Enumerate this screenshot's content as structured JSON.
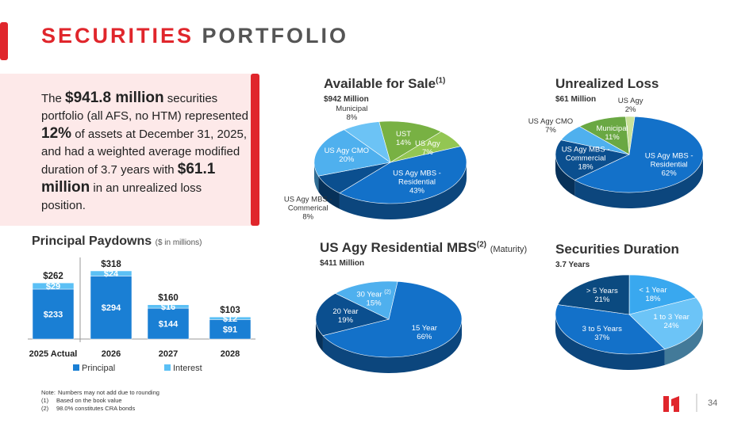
{
  "header": {
    "title_accent": "SECURITIES",
    "title_rest": "PORTFOLIO"
  },
  "summary": [
    {
      "text": "The ",
      "bold": false
    },
    {
      "text": "$941.8 million",
      "bold": true
    },
    {
      "text": " securities portfolio (all AFS, no HTM) represented ",
      "bold": false
    },
    {
      "text": "12%",
      "bold": true
    },
    {
      "text": " of assets at December 31, 2025, and had a weighted average modified duration of 3.7 years with ",
      "bold": false
    },
    {
      "text": "$61.1 million",
      "bold": true
    },
    {
      "text": " in an unrealized loss position.",
      "bold": false
    }
  ],
  "chart_data": [
    {
      "type": "pie",
      "title": "Available for Sale",
      "title_note": "(1)",
      "subtitle": "$942 Million",
      "categories": [
        "UST",
        "US Agy",
        "US Agy MBS - Residential",
        "US Agy MBS - Commerical",
        "US Agy CMO",
        "Municipal"
      ],
      "values": [
        14,
        7,
        43,
        8,
        20,
        8
      ],
      "value_labels": [
        "14%",
        "7%",
        "43%",
        "8%",
        "20%",
        "8%"
      ],
      "colors": [
        "#78b143",
        "#93c653",
        "#1371c9",
        "#0b4f8f",
        "#4fb0ee",
        "#6cc3f5"
      ]
    },
    {
      "type": "pie",
      "title": "Unrealized Loss",
      "subtitle": "$61 Million",
      "categories": [
        "US Agy",
        "US Agy MBS - Residential",
        "US Agy MBS - Commercial",
        "US Agy CMO",
        "Municipal"
      ],
      "values": [
        2,
        62,
        18,
        7,
        11
      ],
      "value_labels": [
        "2%",
        "62%",
        "18%",
        "7%",
        "11%"
      ],
      "colors": [
        "#c9e29a",
        "#1371c9",
        "#0b4f8f",
        "#4fb0ee",
        "#6aa843"
      ]
    },
    {
      "type": "pie",
      "title": "US Agy Residential MBS",
      "title_note": "(2)",
      "title_suffix": "(Maturity)",
      "subtitle": "$411 Million",
      "categories": [
        "15 Year",
        "20 Year",
        "30 Year"
      ],
      "values": [
        66,
        19,
        15
      ],
      "value_labels": [
        "66%",
        "19%",
        "15%"
      ],
      "label_notes": [
        null,
        null,
        "(2)"
      ],
      "colors": [
        "#1371c9",
        "#0b4f8f",
        "#4fb0ee"
      ]
    },
    {
      "type": "pie",
      "title": "Securities Duration",
      "subtitle": "3.7 Years",
      "categories": [
        "< 1 Year",
        "1 to 3 Year",
        "3 to 5 Years",
        "> 5 Years"
      ],
      "values": [
        18,
        24,
        37,
        21
      ],
      "value_labels": [
        "18%",
        "24%",
        "37%",
        "21%"
      ],
      "colors": [
        "#39a8ef",
        "#6cc4f7",
        "#1371c9",
        "#0b4a80"
      ]
    },
    {
      "type": "bar",
      "stacked": true,
      "title": "Principal Paydowns",
      "title_unit": "($ in millions)",
      "categories": [
        "2025 Actual",
        "2026",
        "2027",
        "2028"
      ],
      "series": [
        {
          "name": "Principal",
          "color": "#1a7fd4",
          "values": [
            233,
            294,
            144,
            91
          ],
          "value_labels": [
            "$233",
            "$294",
            "$144",
            "$91"
          ]
        },
        {
          "name": "Interest",
          "color": "#5bc0f5",
          "values": [
            29,
            24,
            16,
            12
          ],
          "value_labels": [
            "$29",
            "$24",
            "$16",
            "$12"
          ]
        }
      ],
      "totals": [
        262,
        318,
        160,
        103
      ],
      "total_labels": [
        "$262",
        "$318",
        "$160",
        "$103"
      ]
    }
  ],
  "notes": [
    {
      "marker": "Note:",
      "text": "Numbers may not add due to rounding"
    },
    {
      "marker": "(1)",
      "text": "Based on the book value"
    },
    {
      "marker": "(2)",
      "text": "98.0% constitutes CRA bonds"
    }
  ],
  "page_number": "34"
}
